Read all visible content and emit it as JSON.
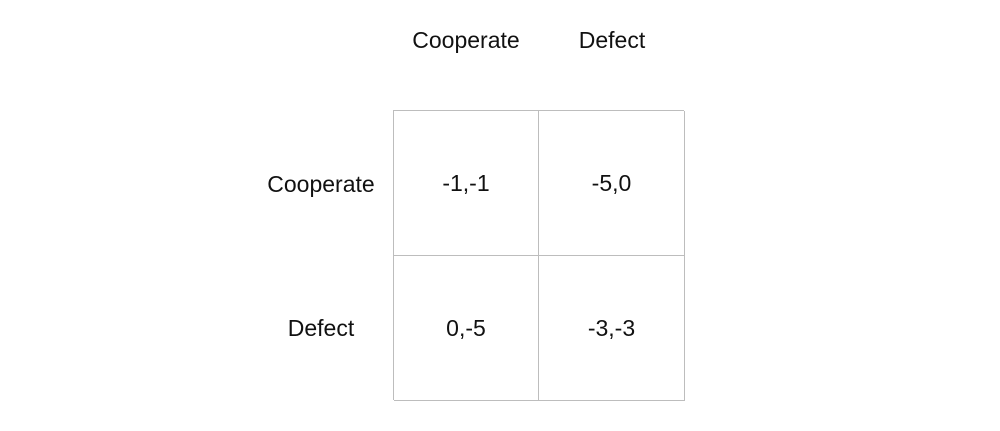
{
  "matrix": {
    "column_labels": [
      "Cooperate",
      "Defect"
    ],
    "row_labels": [
      "Cooperate",
      "Defect"
    ],
    "cells": [
      [
        "-1,-1",
        "-5,0"
      ],
      [
        "0,-5",
        "-3,-3"
      ]
    ],
    "grid_line_color": "#bdbdbd",
    "text_color": "#111111"
  }
}
